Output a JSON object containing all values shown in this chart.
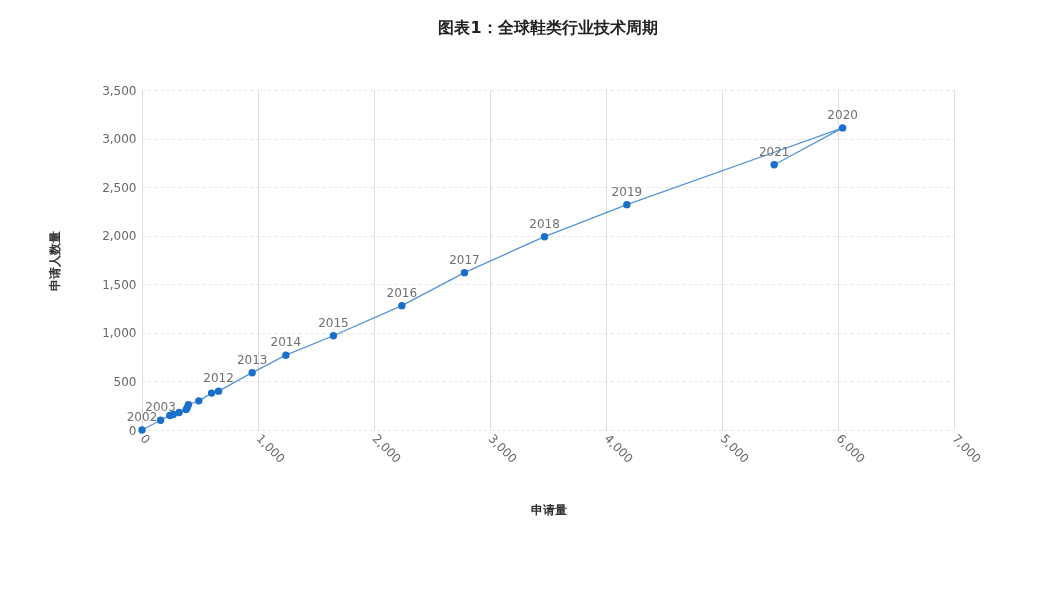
{
  "chart_data": {
    "type": "line",
    "title": "图表1：全球鞋类行业技术周期",
    "xlabel": "申请量",
    "ylabel": "申请人数量",
    "x": [
      0,
      160,
      240,
      270,
      320,
      380,
      390,
      400,
      490,
      600,
      660,
      950,
      1240,
      1650,
      2240,
      2780,
      3470,
      4180,
      6040,
      5450
    ],
    "series": [
      {
        "color": "#1a6fca",
        "values": [
          0,
          100,
          150,
          160,
          180,
          210,
          230,
          260,
          300,
          380,
          400,
          590,
          770,
          970,
          1280,
          1620,
          1990,
          2320,
          3110,
          2730
        ]
      }
    ],
    "xlim": [
      0,
      7000
    ],
    "ylim": [
      0,
      3500
    ],
    "xticks": [
      0,
      {
        "value": 1000,
        "label": "1,000"
      },
      {
        "value": 2000,
        "label": "2,000"
      },
      {
        "value": 3000,
        "label": "3,000"
      },
      {
        "value": 4000,
        "label": "4,000"
      },
      {
        "value": 5000,
        "label": "5,000"
      },
      {
        "value": 6000,
        "label": "6,000"
      },
      {
        "value": 7000,
        "label": "7,000"
      }
    ],
    "yticks": [
      0,
      500,
      {
        "value": 1000,
        "label": "1,000"
      },
      {
        "value": 1500,
        "label": "1,500"
      },
      {
        "value": 2000,
        "label": "2,000"
      },
      {
        "value": 2500,
        "label": "2,500"
      },
      {
        "value": 3000,
        "label": "3,000"
      },
      {
        "value": 3500,
        "label": "3,500"
      }
    ],
    "grid": true,
    "marker": "circle",
    "line_style": "solid",
    "annotations": [
      {
        "text": "2002",
        "x": 0,
        "y": 0
      },
      {
        "text": "2003",
        "x": 160,
        "y": 100
      },
      {
        "text": "2012",
        "x": 660,
        "y": 400
      },
      {
        "text": "2013",
        "x": 950,
        "y": 590
      },
      {
        "text": "2014",
        "x": 1240,
        "y": 770
      },
      {
        "text": "2015",
        "x": 1650,
        "y": 970
      },
      {
        "text": "2016",
        "x": 2240,
        "y": 1280
      },
      {
        "text": "2017",
        "x": 2780,
        "y": 1620
      },
      {
        "text": "2018",
        "x": 3470,
        "y": 1990
      },
      {
        "text": "2019",
        "x": 4180,
        "y": 2320
      },
      {
        "text": "2020",
        "x": 6040,
        "y": 3110
      },
      {
        "text": "2021",
        "x": 5450,
        "y": 2730
      }
    ]
  }
}
